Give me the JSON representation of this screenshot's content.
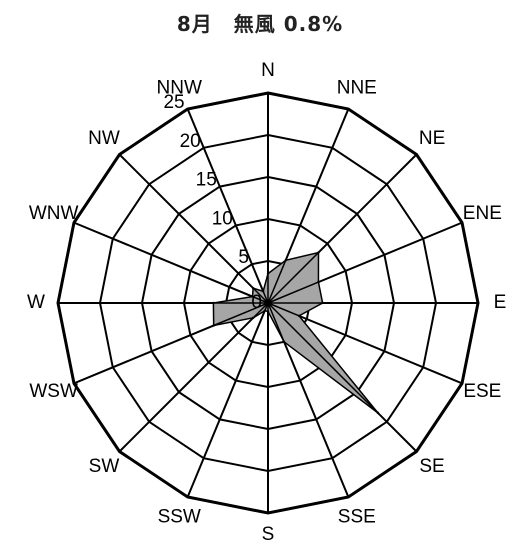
{
  "title": "8月　無風 0.8%",
  "chart_data": {
    "type": "radar",
    "title": "8月　無風 0.8%",
    "directions": [
      "N",
      "NNE",
      "NE",
      "ENE",
      "E",
      "ESE",
      "SE",
      "SSE",
      "S",
      "SSW",
      "SW",
      "WSW",
      "W",
      "WNW",
      "NW",
      "NNW"
    ],
    "r_ticks": [
      "0",
      "5",
      "10",
      "15",
      "20",
      "25"
    ],
    "rlim": [
      0,
      25
    ],
    "values": [
      3.5,
      5.5,
      8.5,
      6.5,
      6.5,
      4.0,
      18.5,
      5.0,
      1.0,
      1.0,
      2.5,
      7.0,
      6.5,
      2.0,
      2.5,
      1.5
    ],
    "fill_color": "#a6a6a6",
    "stroke_color": "#000000",
    "grid": true
  }
}
